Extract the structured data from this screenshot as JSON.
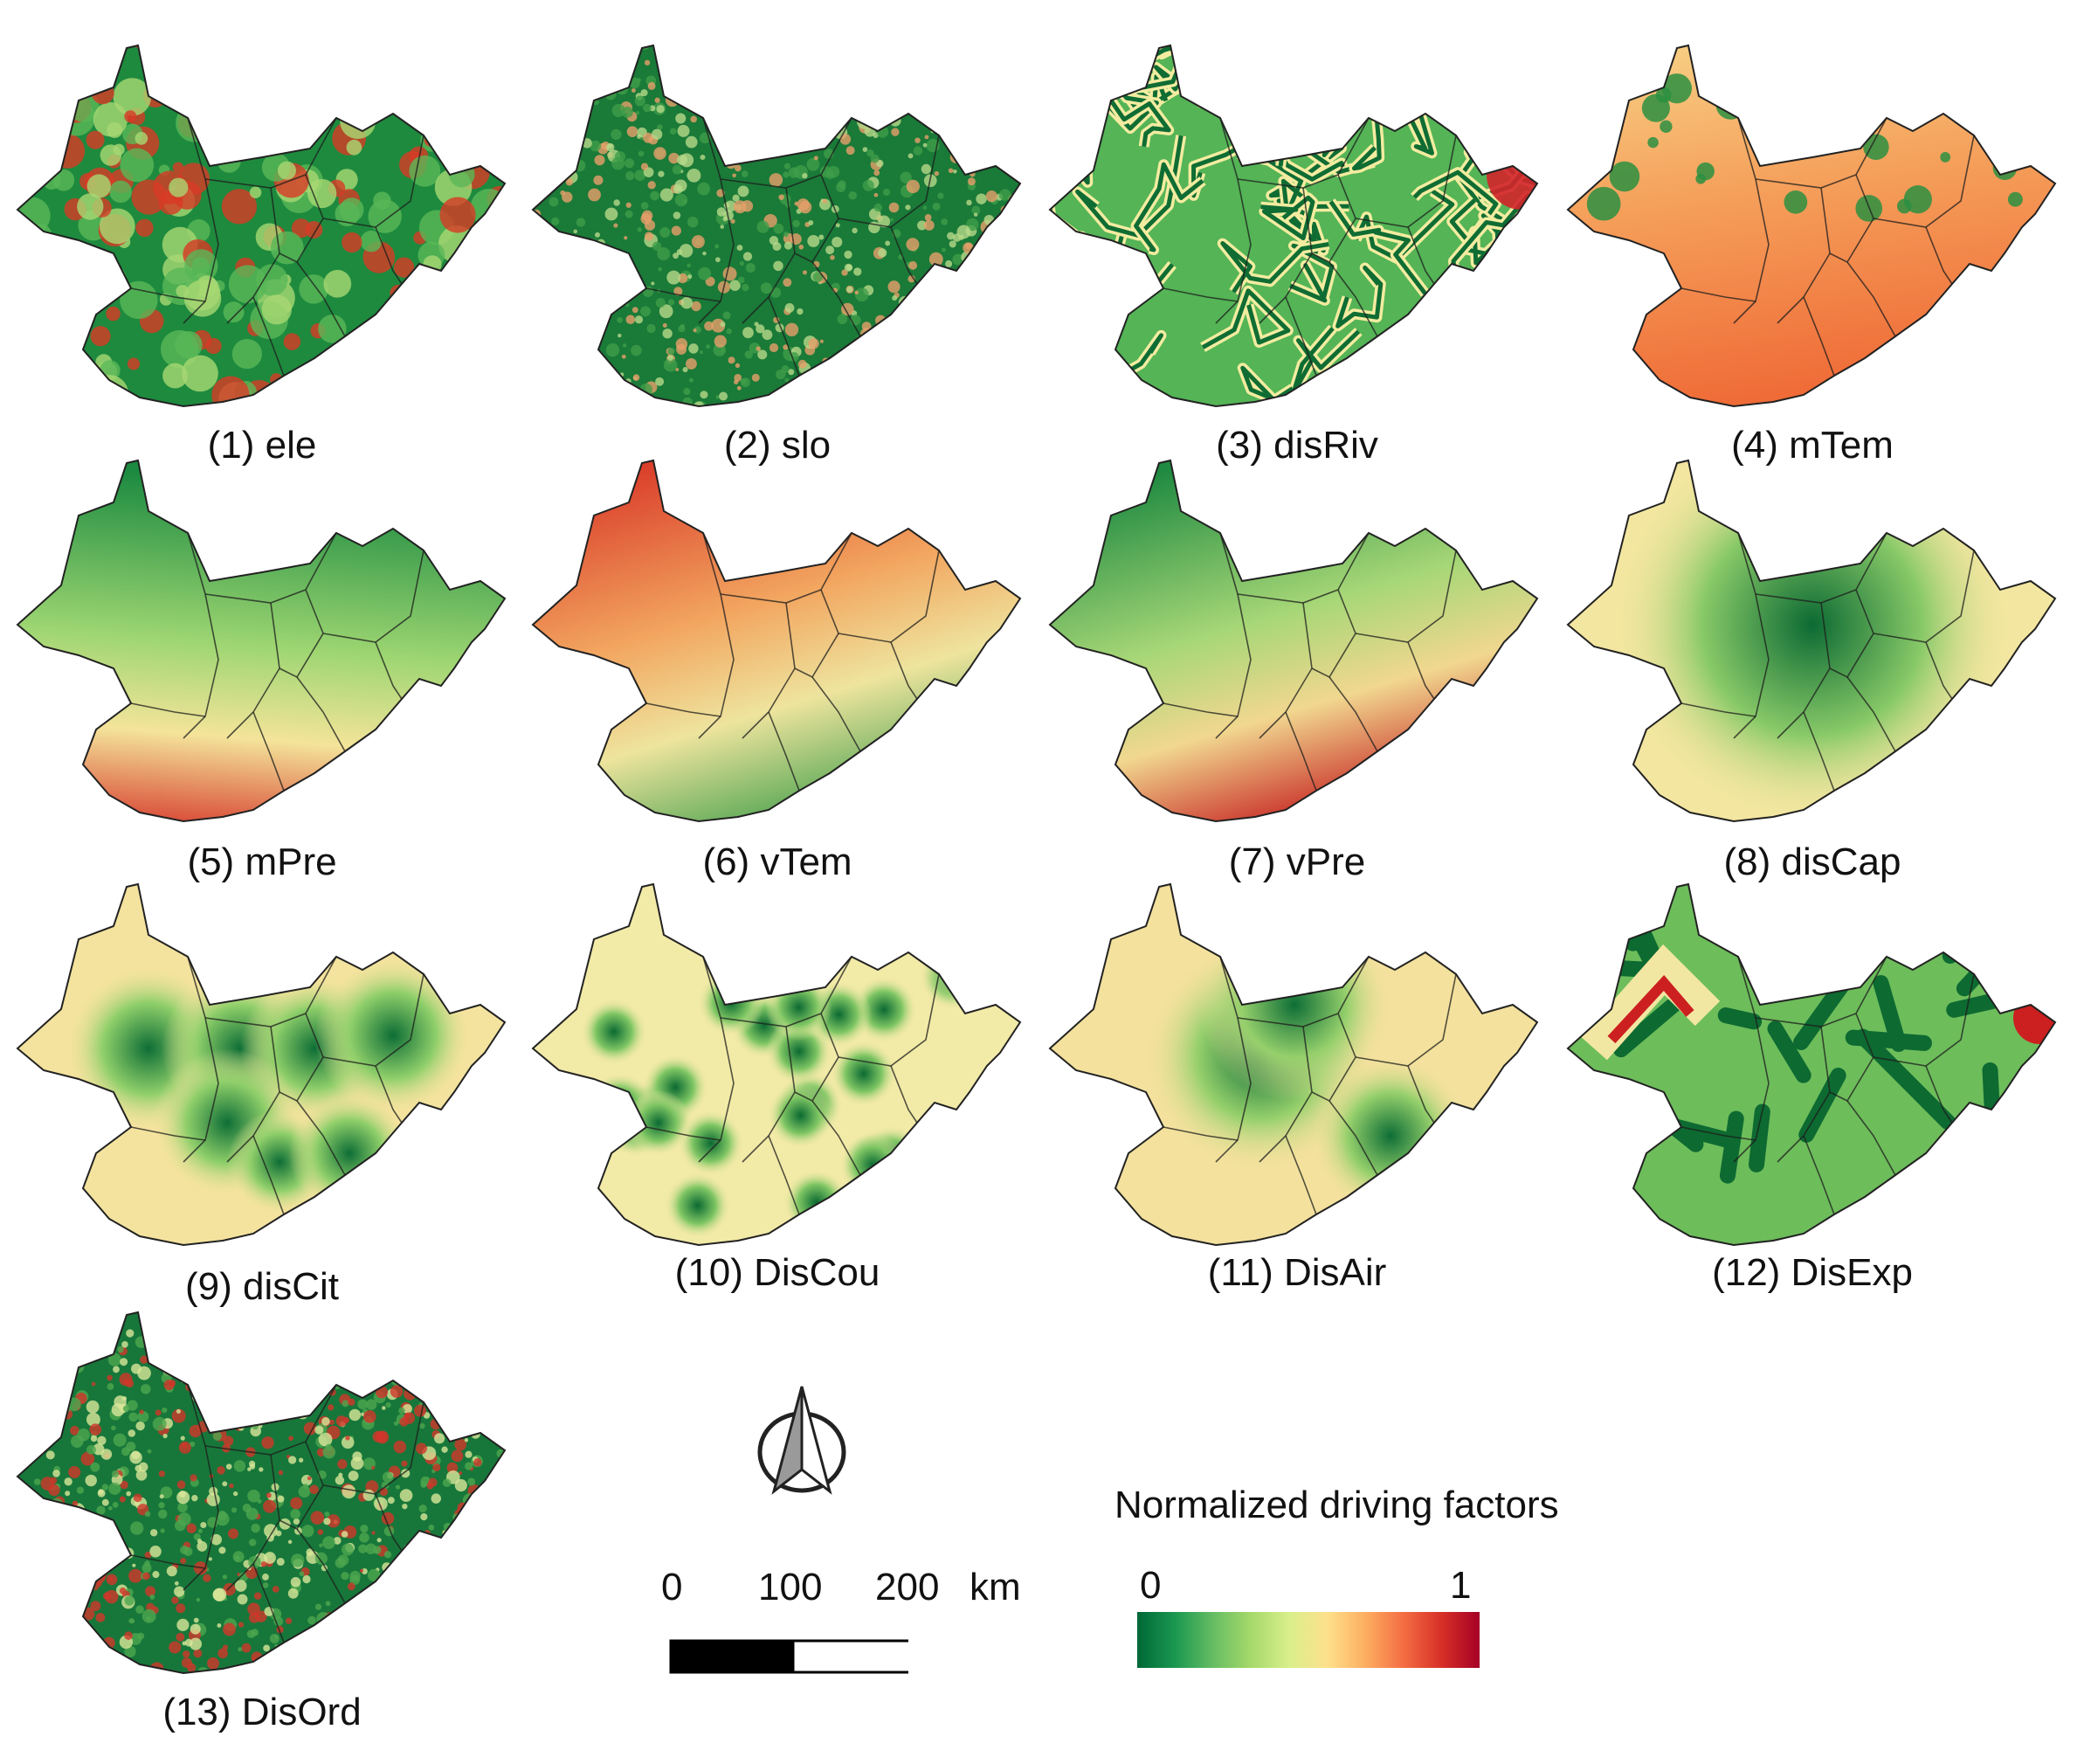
{
  "maps": [
    {
      "caption": "(1) ele",
      "pattern": "terrain",
      "colors": [
        "#1e8a3e",
        "#59b857",
        "#a7d873",
        "#d83a26"
      ]
    },
    {
      "caption": "(2) slo",
      "pattern": "noise",
      "colors": [
        "#1a7a38",
        "#3e9e48",
        "#b6d98a",
        "#e7a06a"
      ]
    },
    {
      "caption": "(3) disRiv",
      "pattern": "rivers",
      "colors": [
        "#0f6d33",
        "#54b456",
        "#f3eca0",
        "#d3242a"
      ]
    },
    {
      "caption": "(4) mTem",
      "pattern": "warm-south",
      "colors": [
        "#f7d68a",
        "#f5a15c",
        "#ef6a36",
        "#2b8f41"
      ]
    },
    {
      "caption": "(5) mPre",
      "pattern": "gradient-sw",
      "colors": [
        "#1b8a40",
        "#9ed672",
        "#f4e49a",
        "#d32a22"
      ]
    },
    {
      "caption": "(6) vTem",
      "pattern": "gradient-nw",
      "colors": [
        "#d62d22",
        "#f2a55f",
        "#eee49e",
        "#3d9d48"
      ]
    },
    {
      "caption": "(7) vPre",
      "pattern": "gradient-se",
      "colors": [
        "#1f8a41",
        "#a7d777",
        "#f1d78f",
        "#c51e1e"
      ]
    },
    {
      "caption": "(8) disCap",
      "pattern": "radial-center",
      "colors": [
        "#0c6a33",
        "#88c968",
        "#f3e6a0",
        "#d9281f"
      ]
    },
    {
      "caption": "(9) disCit",
      "pattern": "multi-radial",
      "colors": [
        "#0e6e36",
        "#8fcf6a",
        "#f4e39e",
        "#d3271f"
      ]
    },
    {
      "caption": "(10) DisCou",
      "pattern": "many-radial",
      "colors": [
        "#0b6a32",
        "#7fc664",
        "#f2eaa7",
        "#d9281f"
      ]
    },
    {
      "caption": "(11) DisAir",
      "pattern": "few-radial",
      "colors": [
        "#0e6e36",
        "#96d06c",
        "#f3e19d",
        "#d62a21"
      ]
    },
    {
      "caption": "(12) DisExp",
      "pattern": "network",
      "colors": [
        "#0d6a31",
        "#6dbd5b",
        "#f2e7a2",
        "#cc2020"
      ]
    },
    {
      "caption": "(13) DisOrd",
      "pattern": "noise-dense",
      "colors": [
        "#17773a",
        "#4da64f",
        "#d9e79a",
        "#d2362a"
      ]
    }
  ],
  "north_arrow_icon": "north-arrow-icon",
  "scale_bar": {
    "labels": [
      "0",
      "100",
      "200"
    ],
    "unit": "km"
  },
  "legend": {
    "title": "Normalized driving factors",
    "min_label": "0",
    "max_label": "1",
    "colors": [
      "#006837",
      "#1a9850",
      "#66bd63",
      "#a6d96a",
      "#d9ef8b",
      "#fee08b",
      "#fdae61",
      "#f46d43",
      "#d73027",
      "#a50026"
    ]
  }
}
